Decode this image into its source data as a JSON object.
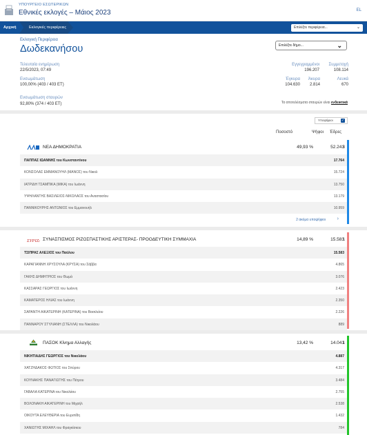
{
  "header": {
    "ministry": "ΥΠΟΥΡΓΕΙΟ ΕΣΩΤΕΡΙΚΩΝ",
    "title": "Εθνικές εκλογές – Μάιος 2023",
    "lang": "EL"
  },
  "nav": {
    "home": "Αρχική",
    "crumb": "Εκλογικές περιφέρειες",
    "select_placeholder": "Επιλέξτε περιφέρεια..."
  },
  "region": {
    "label": "Εκλογική Περιφέρεια",
    "name": "Δωδεκανήσου",
    "select_placeholder": "Επιλέξτε δήμο..."
  },
  "stats": {
    "last_update_label": "Τελευταία ενημέρωση",
    "last_update_value": "22/5/2023, 07:49",
    "count_label": "Ενσωμάτωση",
    "count_value": "100,00% (403 / 403 ΕΤ)",
    "registered_label": "Εγγεγραμμένοι",
    "registered_value": "196.207",
    "turnout_label": "Συμμετοχή",
    "turnout_value": "108.114",
    "valid_label": "Έγκυρα",
    "valid_value": "104.630",
    "invalid_label": "Άκυρα",
    "invalid_value": "2.814",
    "blank_label": "Λευκά",
    "blank_value": "670",
    "cross_label": "Ενσωμάτωση σταυρών",
    "cross_value": "92,80% (374 / 403 ΕΤ)",
    "cross_note": "Τα αποτελέσματα σταυρών είναι",
    "cross_note_bold": "ενδεικτικά"
  },
  "toggle": {
    "label": "Υποψήφιοι",
    "checked": "✓"
  },
  "columns": {
    "pct": "Ποσοστό",
    "votes": "Ψήφοι",
    "seats": "Έδρες"
  },
  "colors": {
    "nd": "#1e88e5",
    "syriza": "#f08080",
    "pasok": "#22c42a",
    "brand": "#11529b"
  },
  "parties": [
    {
      "name": "ΝΕΑ ΔΗΜΟΚΡΑΤΙΑ",
      "pct": "49,93 %",
      "votes": "52.241",
      "seats": "3",
      "more": "2 ακόμα υποψήφιοι",
      "candidates": [
        {
          "name": "ΠΑΠΠΑΣ ΙΩΑΝΝΗΣ του Κωνσταντίνου",
          "votes": "17.764"
        },
        {
          "name": "ΚΟΝΣΟΛΑΣ ΕΜΜΑΝΟΥΗΛ (ΜΑΝΟΣ) του Νικολ",
          "votes": "15.724"
        },
        {
          "name": "ΙΑΤΡΙΔΗ ΤΣΑΜΠΙΚΑ (ΜΙΚΑ) του Ιωάννη",
          "votes": "13.750"
        },
        {
          "name": "ΥΨΗΛΑΝΤΗΣ ΒΑΣΙΛΕΙΟΣ-ΝΙΚΟΛΑΟΣ του Αναστασίου",
          "votes": "13.179"
        },
        {
          "name": "ΠΑΝΝΙΚΟΥΡΗΣ ΑΝΤΩΝΙΟΣ του Εμμανουήλ",
          "votes": "10.959"
        }
      ]
    },
    {
      "name": "ΣΥΝΑΣΠΙΣΜΟΣ ΡΙΖΟΣΠΑΣΤΙΚΗΣ ΑΡΙΣΤΕΡΑΣ- ΠΡΟΟΔΕΥΤΙΚΗ ΣΥΜΜΑΧΙΑ",
      "pct": "14,89 %",
      "votes": "15.583",
      "seats": "1",
      "candidates": [
        {
          "name": "ΤΣΙΠΡΑΣ ΑΛΕΞΙΟΣ του Παύλου",
          "votes": "15.583"
        },
        {
          "name": "ΚΑΡΑΓΙΑΝΝΗ ΧΡΥΣΟΥΛΑ (ΚΡΥΣΑ) του Σάββα",
          "votes": "4.865"
        },
        {
          "name": "ΓΑΚΗΣ ΔΗΜΗΤΡΙΟΣ του Θωμά",
          "votes": "3.076"
        },
        {
          "name": "ΚΑΣΣΑΡΑΣ ΓΕΩΡΓΙΟΣ του Ιωάννη",
          "votes": "2.423"
        },
        {
          "name": "ΚΑΜΑΤΕΡΟΣ ΗΛΙΑΣ του Ιωάννη",
          "votes": "2.350"
        },
        {
          "name": "ΣΑΡΑΝΤΗ ΑΙΚΑΤΕΡΙΝΗ (ΚΑΤΕΡΙΝΑ) του Βασιλείου",
          "votes": "2.226"
        },
        {
          "name": "ΠΑΝΝΑΡΟΥ ΣΤΥΛΙΑΝΗ (ΣΤΕΛΛΑ) του Νικολάου",
          "votes": "889"
        }
      ]
    },
    {
      "name": "ΠΑΣΟΚ Κίνημα Αλλαγής",
      "pct": "13,42 %",
      "votes": "14.041",
      "seats": "1",
      "candidates": [
        {
          "name": "ΝΙΚΗΤΙΑΔΗΣ ΓΕΩΡΓΙΟΣ του Νικολάου",
          "votes": "4.887"
        },
        {
          "name": "ΧΑΤΖΗΔΑΚΟΣ ΦΩΤΙΟΣ του Σπύρου",
          "votes": "4.317"
        },
        {
          "name": "ΚΟΥΝΑΚΗΣ ΠΑΝΑΓΙΩΤΗΣ του Πέτρου",
          "votes": "3.484"
        },
        {
          "name": "ΓΑΒΑΛΑ ΚΑΤΕΡΙΝΑ του Νικολάου",
          "votes": "2.755"
        },
        {
          "name": "ΒΟΛΟΝΑΚΗ ΑΙΚΑΤΕΡΙΝΗ του Μιχαήλ",
          "votes": "2.538"
        },
        {
          "name": "ΟΙΚΟΥΤΑ ΕΛΕΥΘΕΡΙΑ του Ευριπίδη",
          "votes": "1.432"
        },
        {
          "name": "ΧΑΝΙΩΤΗΣ ΜΙΧΑΗΛ του Φραγκίσκου",
          "votes": "784"
        }
      ]
    }
  ],
  "logos": {
    "nd": "ΝΔ",
    "syriza": "ΣΥΡΙΖΑ",
    "pasok": "ΠΑΣΟΚ"
  }
}
